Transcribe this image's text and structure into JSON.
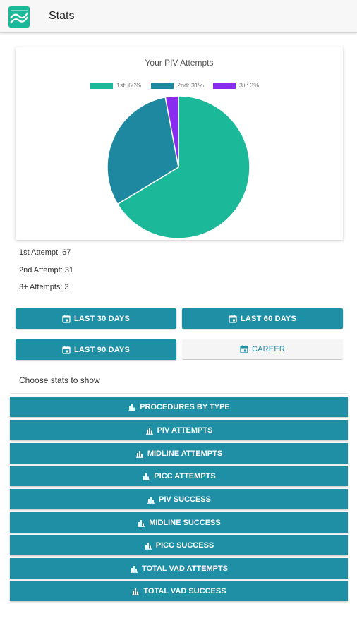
{
  "app": {
    "title": "Stats"
  },
  "colors": {
    "teal_button": "#1e8fa4",
    "slice_1st": "#1bb899",
    "slice_2nd": "#1e88a0",
    "slice_3plus": "#8a2cf0"
  },
  "chart_data": {
    "type": "pie",
    "title": "Your PIV Attempts",
    "labels": [
      "1st: 66%",
      "2nd: 31%",
      "3+: 3%"
    ],
    "values": [
      67,
      31,
      3
    ],
    "colors": [
      "#1bb899",
      "#1e88a0",
      "#8a2cf0"
    ],
    "legend": "top"
  },
  "summary": {
    "first": "1st Attempt: 67",
    "second": "2nd Attempt: 31",
    "third": "3+ Attempts: 3"
  },
  "range_buttons": {
    "last30": "LAST 30 DAYS",
    "last60": "LAST 60 DAYS",
    "last90": "LAST 90 DAYS",
    "career": "CAREER",
    "selected": "CAREER"
  },
  "choose_label": "Choose stats to show",
  "stat_buttons": [
    "PROCEDURES BY TYPE",
    "PIV ATTEMPTS",
    "MIDLINE ATTEMPTS",
    "PICC ATTEMPTS",
    "PIV SUCCESS",
    "MIDLINE SUCCESS",
    "PICC SUCCESS",
    "TOTAL VAD ATTEMPTS",
    "TOTAL VAD SUCCESS"
  ],
  "icons": {
    "logo": "trend-logo-icon",
    "calendar": "calendar-icon",
    "bar_chart": "bar-chart-icon"
  }
}
